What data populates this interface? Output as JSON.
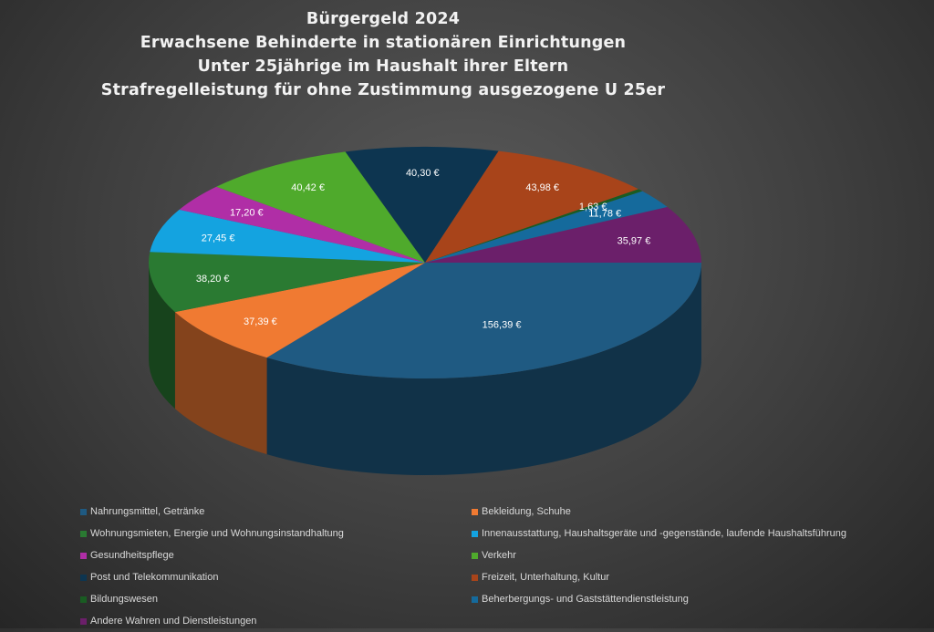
{
  "chart_data": {
    "type": "pie",
    "title_lines": [
      "Bürgergeld 2024",
      "Erwachsene Behinderte in stationären Einrichtungen",
      "Unter 25jährige im Haushalt ihrer Eltern",
      "Strafregelleistung für ohne Zustimmung ausgezogene U 25er"
    ],
    "legend_position": "bottom",
    "slices": [
      {
        "name": "Nahrungsmittel, Getränke",
        "value": 156.39,
        "label": "156,39 €",
        "color": "#1f5a82"
      },
      {
        "name": "Bekleidung, Schuhe",
        "value": 37.39,
        "label": "37,39 €",
        "color": "#f07a32"
      },
      {
        "name": "Wohnungsmieten, Energie und Wohnungsinstandhaltung",
        "value": 38.2,
        "label": "38,20 €",
        "color": "#2a7a32"
      },
      {
        "name": "Innenausstattung, Haushaltsgeräte und -gegenstände, laufende Haushaltsführung",
        "value": 27.45,
        "label": "27,45 €",
        "color": "#14a3e0"
      },
      {
        "name": "Gesundheitspflege",
        "value": 17.2,
        "label": "17,20 €",
        "color": "#b02ea6"
      },
      {
        "name": "Verkehr",
        "value": 40.42,
        "label": "40,42 €",
        "color": "#4faa2c"
      },
      {
        "name": "Post und Telekommunikation",
        "value": 40.3,
        "label": "40,30 €",
        "color": "#0d3550"
      },
      {
        "name": "Freizeit, Unterhaltung, Kultur",
        "value": 43.98,
        "label": "43,98 €",
        "color": "#a8441a"
      },
      {
        "name": "Bildungswesen",
        "value": 1.63,
        "label": "1,63 €",
        "color": "#195c22"
      },
      {
        "name": "Beherbergungs- und Gaststättendienstleistung",
        "value": 11.78,
        "label": "11,78 €",
        "color": "#156a9c"
      },
      {
        "name": "Andere Wahren und Dienstleistungen",
        "value": 35.97,
        "label": "35,97 €",
        "color": "#6b1f6a"
      }
    ]
  }
}
